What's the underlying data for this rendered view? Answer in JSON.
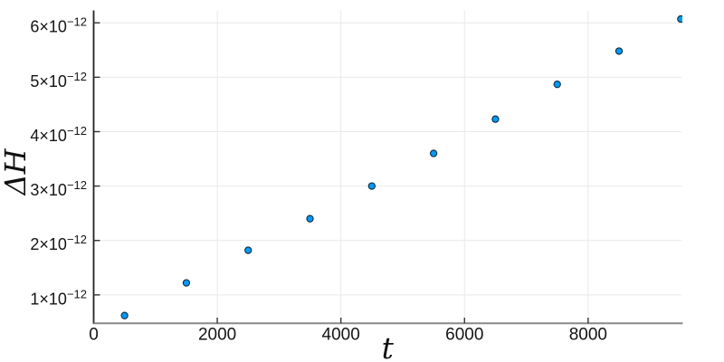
{
  "figure": {
    "background": "#ffffff",
    "title": ""
  },
  "chart_data": {
    "type": "scatter",
    "title": "",
    "xlabel": "t",
    "ylabel": "ΔH",
    "x": [
      500,
      1500,
      2500,
      3500,
      4500,
      5500,
      6500,
      7500,
      8500,
      9500
    ],
    "y_in_units_of_1e_minus_12": [
      0.62,
      1.22,
      1.82,
      2.4,
      3.0,
      3.6,
      4.23,
      4.87,
      5.48,
      6.07
    ],
    "y_unit": "×10⁻¹²",
    "xlim": [
      0,
      9510
    ],
    "ylim_in_units_of_1e_minus_12": [
      0.49,
      6.22
    ],
    "grid": true,
    "legend": "none",
    "xticks": {
      "values": [
        0,
        2000,
        4000,
        6000,
        8000
      ],
      "labels": [
        "0",
        "2000",
        "4000",
        "6000",
        "8000"
      ]
    },
    "yticks": {
      "values_in_units_of_1e_minus_12": [
        1,
        2,
        3,
        4,
        5,
        6
      ],
      "labels": [
        {
          "mantissa": "1×10",
          "exponent": "−12"
        },
        {
          "mantissa": "2×10",
          "exponent": "−12"
        },
        {
          "mantissa": "3×10",
          "exponent": "−12"
        },
        {
          "mantissa": "4×10",
          "exponent": "−12"
        },
        {
          "mantissa": "5×10",
          "exponent": "−12"
        },
        {
          "mantissa": "6×10",
          "exponent": "−12"
        }
      ]
    },
    "marker": {
      "shape": "circle",
      "fill": "#009af9",
      "stroke": "#0d2b40",
      "stroke_width": 1.1,
      "radius": 3.6
    }
  },
  "style_colors": {
    "gridline": "#e9e9e9",
    "spine_left": "#222222",
    "spine_bottom": "#8a8a8a",
    "tick_mark": "#333333",
    "tick_label": "#151515",
    "axis_label": "#111111"
  }
}
